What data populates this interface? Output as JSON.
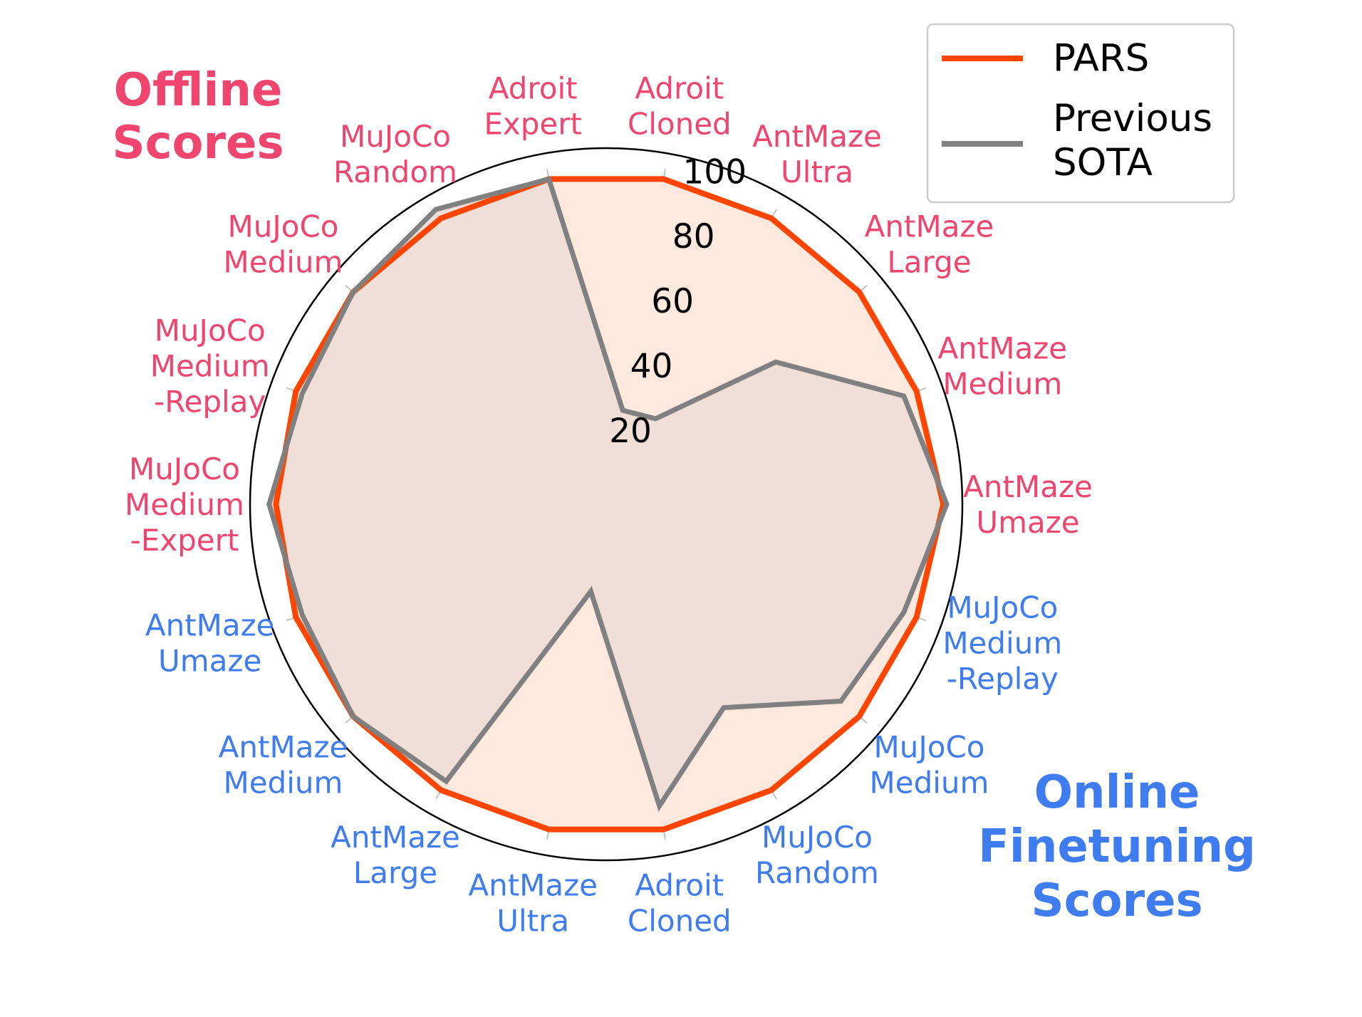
{
  "chart_data": {
    "type": "radar",
    "scale": {
      "min": 0,
      "max": 100,
      "ticks": [
        20,
        40,
        60,
        80,
        100
      ]
    },
    "grid": true,
    "legend": {
      "placement": "top-right",
      "entries": [
        "PARS",
        "Previous\nSOTA"
      ]
    },
    "group_titles": {
      "offline": "Offline\nScores",
      "online": "Online\nFinetuning\nScores"
    },
    "categories": [
      {
        "label": "AntMaze\nUmaze",
        "group": "offline"
      },
      {
        "label": "AntMaze\nMedium",
        "group": "offline"
      },
      {
        "label": "AntMaze\nLarge",
        "group": "offline"
      },
      {
        "label": "AntMaze\nUltra",
        "group": "offline"
      },
      {
        "label": "Adroit\nCloned",
        "group": "offline"
      },
      {
        "label": "Adroit\nExpert",
        "group": "offline"
      },
      {
        "label": "MuJoCo\nRandom",
        "group": "offline"
      },
      {
        "label": "MuJoCo\nMedium",
        "group": "offline"
      },
      {
        "label": "MuJoCo\nMedium\n-Replay",
        "group": "offline"
      },
      {
        "label": "MuJoCo\nMedium\n-Expert",
        "group": "offline"
      },
      {
        "label": "AntMaze\nUmaze",
        "group": "online"
      },
      {
        "label": "AntMaze\nMedium",
        "group": "online"
      },
      {
        "label": "AntMaze\nLarge",
        "group": "online"
      },
      {
        "label": "AntMaze\nUltra",
        "group": "online"
      },
      {
        "label": "Adroit\nCloned",
        "group": "online"
      },
      {
        "label": "MuJoCo\nRandom",
        "group": "online"
      },
      {
        "label": "MuJoCo\nMedium",
        "group": "online"
      },
      {
        "label": "MuJoCo\nMedium\n-Replay",
        "group": "online"
      }
    ],
    "series": [
      {
        "name": "PARS",
        "values": [
          99,
          97,
          97,
          97,
          97,
          97,
          97,
          97,
          97,
          97,
          97,
          97,
          97,
          97,
          97,
          97,
          97,
          97
        ]
      },
      {
        "name": "Previous SOTA",
        "values": [
          100,
          93,
          65,
          29,
          28,
          97,
          100,
          97,
          95,
          99,
          95,
          97,
          94,
          26,
          90,
          69,
          90,
          93
        ]
      }
    ]
  },
  "colors": {
    "pars": "#ff4500",
    "pars_fill": "#ffe9df",
    "previous_sota": "#808080",
    "overlap_fill": "#f0dfd8",
    "offline": "#f0456e",
    "online": "#3f7cf0",
    "grid": "#b8b8b8",
    "frame": "#000000"
  }
}
